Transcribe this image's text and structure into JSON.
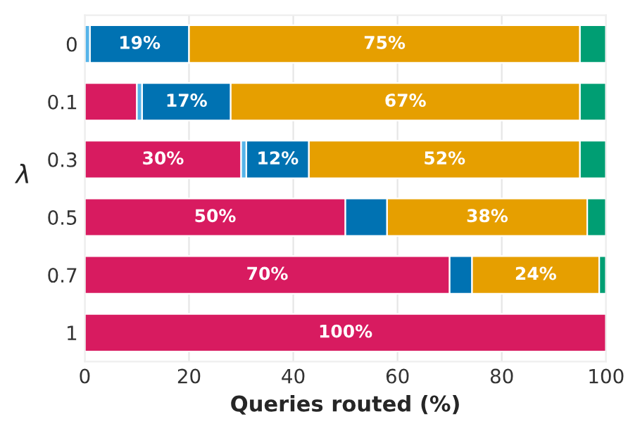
{
  "chart_data": {
    "type": "bar",
    "orientation": "horizontal",
    "stacked": true,
    "categories": [
      "0",
      "0.1",
      "0.3",
      "0.5",
      "0.7",
      "1"
    ],
    "xlabel": "Queries routed (%)",
    "ylabel": "λ",
    "xlim": [
      0,
      100
    ],
    "xticks": [
      0,
      20,
      40,
      60,
      80,
      100
    ],
    "grid": "x",
    "legend": false,
    "series": [
      {
        "color": "#d81b60",
        "values": [
          0,
          10,
          30,
          50,
          70,
          100
        ],
        "value_labels": [
          null,
          null,
          "30%",
          "50%",
          "70%",
          "100%"
        ]
      },
      {
        "color": "#56b4e9",
        "values": [
          1,
          1,
          1,
          null,
          null,
          null
        ]
      },
      {
        "color": "#0072b2",
        "values": [
          19,
          17,
          12,
          8,
          4.3,
          null
        ],
        "value_labels": [
          "19%",
          "17%",
          "12%",
          null,
          null,
          null
        ]
      },
      {
        "color": "#e69f00",
        "values": [
          75,
          67,
          52,
          38.4,
          24.4,
          null
        ],
        "value_labels": [
          "75%",
          "67%",
          "52%",
          "38%",
          "24%",
          null
        ]
      },
      {
        "color": "#009e73",
        "values": [
          5,
          5,
          5,
          3.6,
          1.3,
          null
        ]
      }
    ]
  }
}
